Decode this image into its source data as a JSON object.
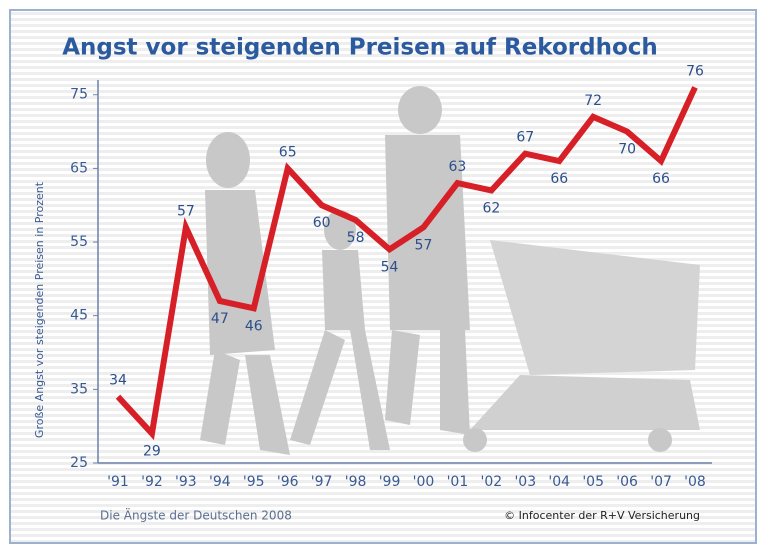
{
  "chart_data": {
    "type": "line",
    "title": "Angst vor steigenden Preisen auf Rekordhoch",
    "y_label": "Große Angst vor steigenden Preisen in Prozent",
    "source_left": "Die Ängste der Deutschen 2008",
    "source_right": "© Infocenter der R+V Versicherung",
    "categories": [
      "'91",
      "'92",
      "'93",
      "'94",
      "'95",
      "'96",
      "'97",
      "'98",
      "'99",
      "'00",
      "'01",
      "'02",
      "'03",
      "'04",
      "'05",
      "'06",
      "'07",
      "'08"
    ],
    "values": [
      34,
      29,
      57,
      47,
      46,
      65,
      60,
      58,
      54,
      57,
      63,
      62,
      67,
      66,
      72,
      70,
      66,
      76
    ],
    "color": "#d61f26",
    "ylim": [
      25,
      77
    ],
    "yticks": [
      25,
      35,
      45,
      55,
      65,
      75
    ]
  }
}
